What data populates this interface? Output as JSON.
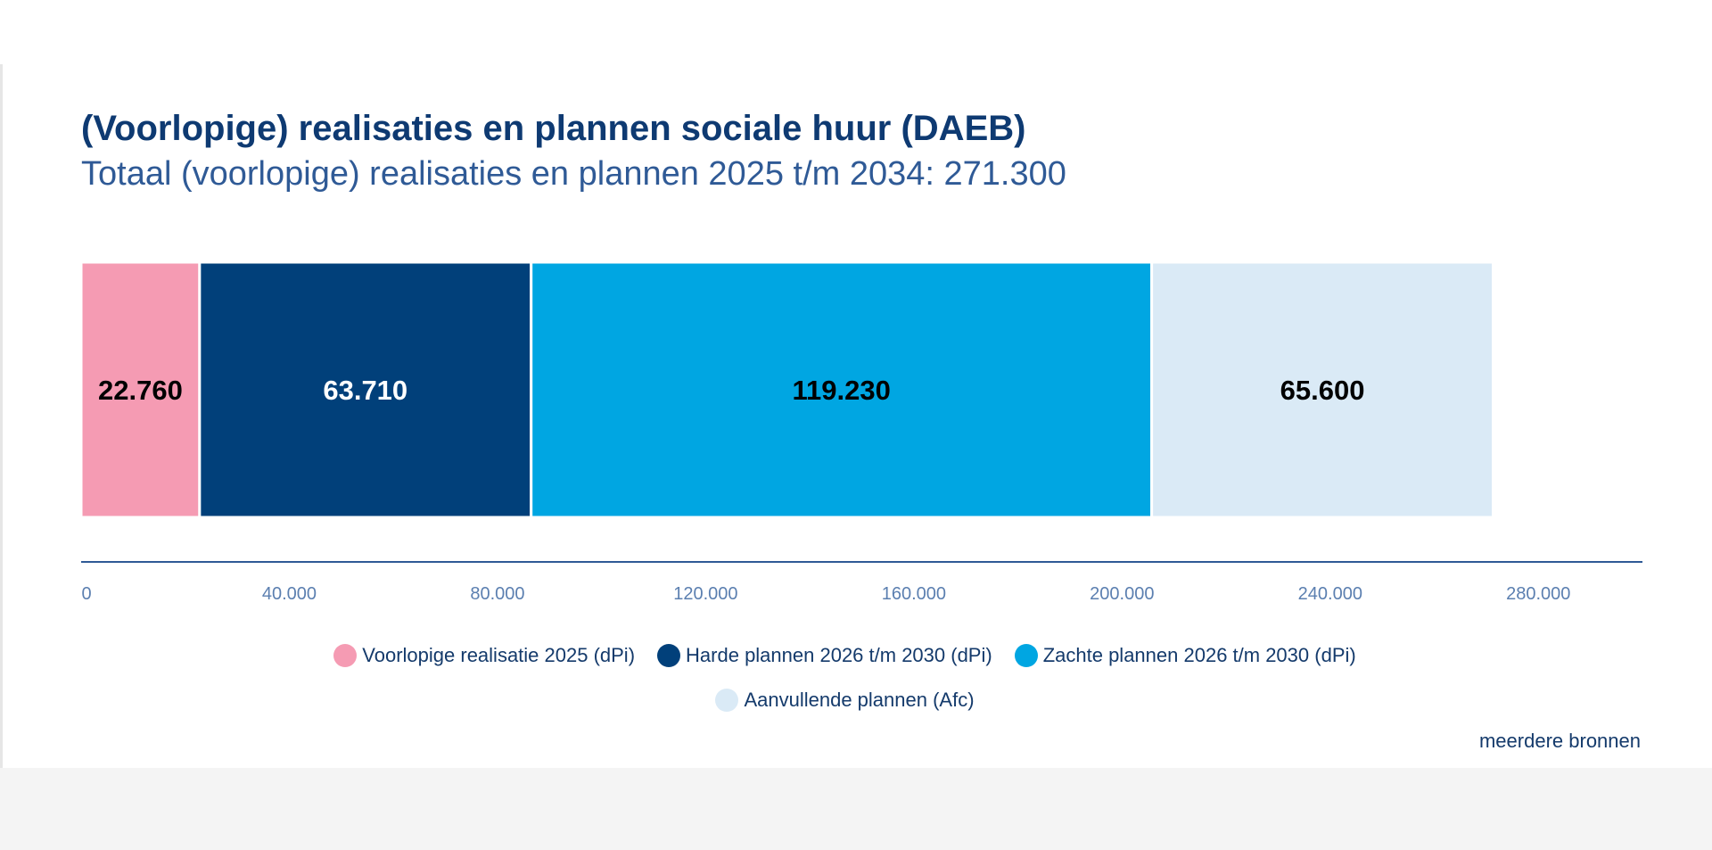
{
  "chart_data": {
    "type": "bar",
    "orientation": "horizontal-stacked",
    "title": "(Voorlopige) realisaties en plannen sociale huur (DAEB)",
    "subtitle": "Totaal (voorlopige) realisaties en plannen 2025 t/m 2034: 271.300",
    "xlim": [
      0,
      300000
    ],
    "xticks": [
      0,
      40000,
      80000,
      120000,
      160000,
      200000,
      240000,
      280000
    ],
    "xtick_labels": [
      "0",
      "40.000",
      "80.000",
      "120.000",
      "160.000",
      "200.000",
      "240.000",
      "280.000"
    ],
    "grid": false,
    "legend_position": "bottom",
    "series": [
      {
        "name": "Voorlopige realisatie 2025 (dPi)",
        "value": 22760,
        "label": "22.760",
        "color": "#f59bb3",
        "label_color": "#000000"
      },
      {
        "name": "Harde plannen 2026 t/m 2030 (dPi)",
        "value": 63710,
        "label": "63.710",
        "color": "#01407a",
        "label_color": "#ffffff"
      },
      {
        "name": "Zachte plannen 2026 t/m 2030 (dPi)",
        "value": 119230,
        "label": "119.230",
        "color": "#00a6e2",
        "label_color": "#000000"
      },
      {
        "name": "Aanvullende plannen (Afc)",
        "value": 65600,
        "label": "65.600",
        "color": "#daeaf6",
        "label_color": "#000000"
      }
    ],
    "source": "meerdere bronnen"
  }
}
